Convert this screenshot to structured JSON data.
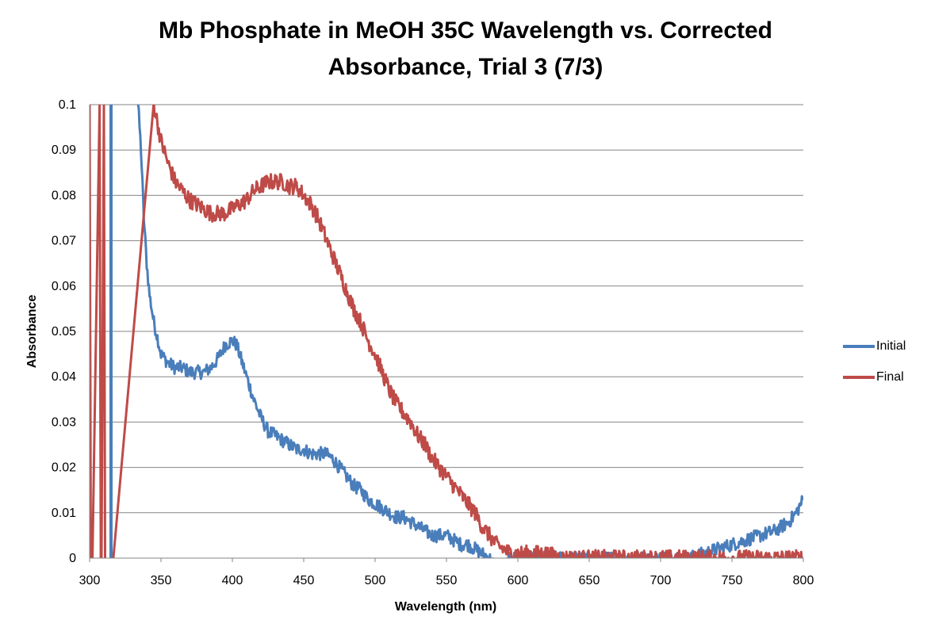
{
  "chart_data": {
    "type": "line",
    "title_line1": "Mb Phosphate in MeOH 35C Wavelength vs. Corrected",
    "title_line2": "Absorbance, Trial 3 (7/3)",
    "xlabel": "Wavelength (nm)",
    "ylabel": "Absorbance",
    "xlim": [
      300,
      800
    ],
    "ylim": [
      0,
      0.1
    ],
    "x_ticks": [
      "300",
      "350",
      "400",
      "450",
      "500",
      "550",
      "600",
      "650",
      "700",
      "750",
      "800"
    ],
    "y_ticks": [
      "0",
      "0.01",
      "0.02",
      "0.03",
      "0.04",
      "0.05",
      "0.06",
      "0.07",
      "0.08",
      "0.09",
      "0.1"
    ],
    "grid": "horizontal",
    "legend_position": "right",
    "series": [
      {
        "name": "Initial",
        "color": "#4a7ebb",
        "noise": 0.0015,
        "x": [
          315,
          315.5,
          334,
          336,
          338,
          340,
          342,
          345,
          348,
          350,
          355,
          360,
          365,
          370,
          375,
          380,
          385,
          390,
          395,
          400,
          403,
          405,
          410,
          415,
          420,
          425,
          430,
          435,
          440,
          445,
          450,
          455,
          460,
          465,
          470,
          475,
          480,
          485,
          490,
          495,
          500,
          505,
          510,
          515,
          520,
          525,
          530,
          535,
          540,
          545,
          550,
          555,
          560,
          565,
          570,
          575,
          580,
          585,
          590,
          595,
          600,
          610,
          620,
          630,
          640,
          650,
          660,
          670,
          680,
          690,
          700,
          710,
          720,
          730,
          740,
          750,
          760,
          770,
          780,
          790,
          795,
          800
        ],
        "y": [
          0.1,
          0.1,
          0.1,
          0.09,
          0.075,
          0.065,
          0.058,
          0.052,
          0.048,
          0.045,
          0.043,
          0.042,
          0.042,
          0.041,
          0.041,
          0.041,
          0.042,
          0.044,
          0.047,
          0.048,
          0.047,
          0.045,
          0.04,
          0.035,
          0.031,
          0.028,
          0.027,
          0.026,
          0.025,
          0.024,
          0.024,
          0.023,
          0.023,
          0.023,
          0.022,
          0.02,
          0.018,
          0.016,
          0.015,
          0.013,
          0.012,
          0.011,
          0.01,
          0.009,
          0.009,
          0.008,
          0.007,
          0.006,
          0.005,
          0.005,
          0.005,
          0.004,
          0.003,
          0.003,
          0.002,
          0.001,
          0.0,
          -0.002,
          -0.002,
          0.0,
          0.0,
          0.0,
          0.0,
          0.0,
          0.0,
          0.0,
          0.0,
          0.0,
          0.0,
          0.0,
          0.0,
          0.0,
          0.0,
          0.001,
          0.002,
          0.003,
          0.004,
          0.005,
          0.006,
          0.008,
          0.01,
          0.013
        ]
      },
      {
        "name": "Final",
        "color": "#be4b48",
        "noise": 0.0018,
        "x": [
          345,
          350,
          355,
          360,
          365,
          370,
          375,
          380,
          385,
          390,
          395,
          400,
          405,
          410,
          415,
          420,
          425,
          430,
          435,
          440,
          445,
          450,
          455,
          460,
          465,
          470,
          475,
          480,
          485,
          490,
          495,
          500,
          505,
          510,
          515,
          520,
          525,
          530,
          535,
          540,
          545,
          550,
          555,
          560,
          565,
          570,
          575,
          580,
          585,
          590,
          595,
          600,
          610,
          620,
          630,
          640,
          650,
          660,
          670,
          680,
          690,
          700,
          710,
          720,
          730,
          740,
          750,
          760,
          770,
          780,
          790,
          800
        ],
        "y": [
          0.1,
          0.092,
          0.087,
          0.083,
          0.081,
          0.079,
          0.078,
          0.077,
          0.076,
          0.076,
          0.076,
          0.077,
          0.078,
          0.079,
          0.081,
          0.082,
          0.083,
          0.083,
          0.083,
          0.082,
          0.082,
          0.08,
          0.078,
          0.075,
          0.071,
          0.067,
          0.063,
          0.059,
          0.055,
          0.052,
          0.048,
          0.045,
          0.041,
          0.037,
          0.034,
          0.032,
          0.03,
          0.027,
          0.025,
          0.022,
          0.02,
          0.018,
          0.016,
          0.014,
          0.012,
          0.01,
          0.007,
          0.005,
          0.003,
          0.002,
          0.001,
          0.001,
          0.001,
          0.001,
          0.0,
          0.0,
          0.0,
          0.0,
          0.0,
          0.0,
          0.0,
          0.0,
          0.0,
          0.0,
          0.0,
          0.0,
          0.0,
          0.0,
          0.0,
          0.0,
          0.0,
          0.0
        ],
        "spikes": [
          [
            300,
            0.1
          ],
          [
            301,
            -0.02
          ],
          [
            307,
            0.1
          ],
          [
            308,
            -0.02
          ],
          [
            310,
            0.1
          ],
          [
            311,
            -0.02
          ]
        ]
      }
    ]
  }
}
